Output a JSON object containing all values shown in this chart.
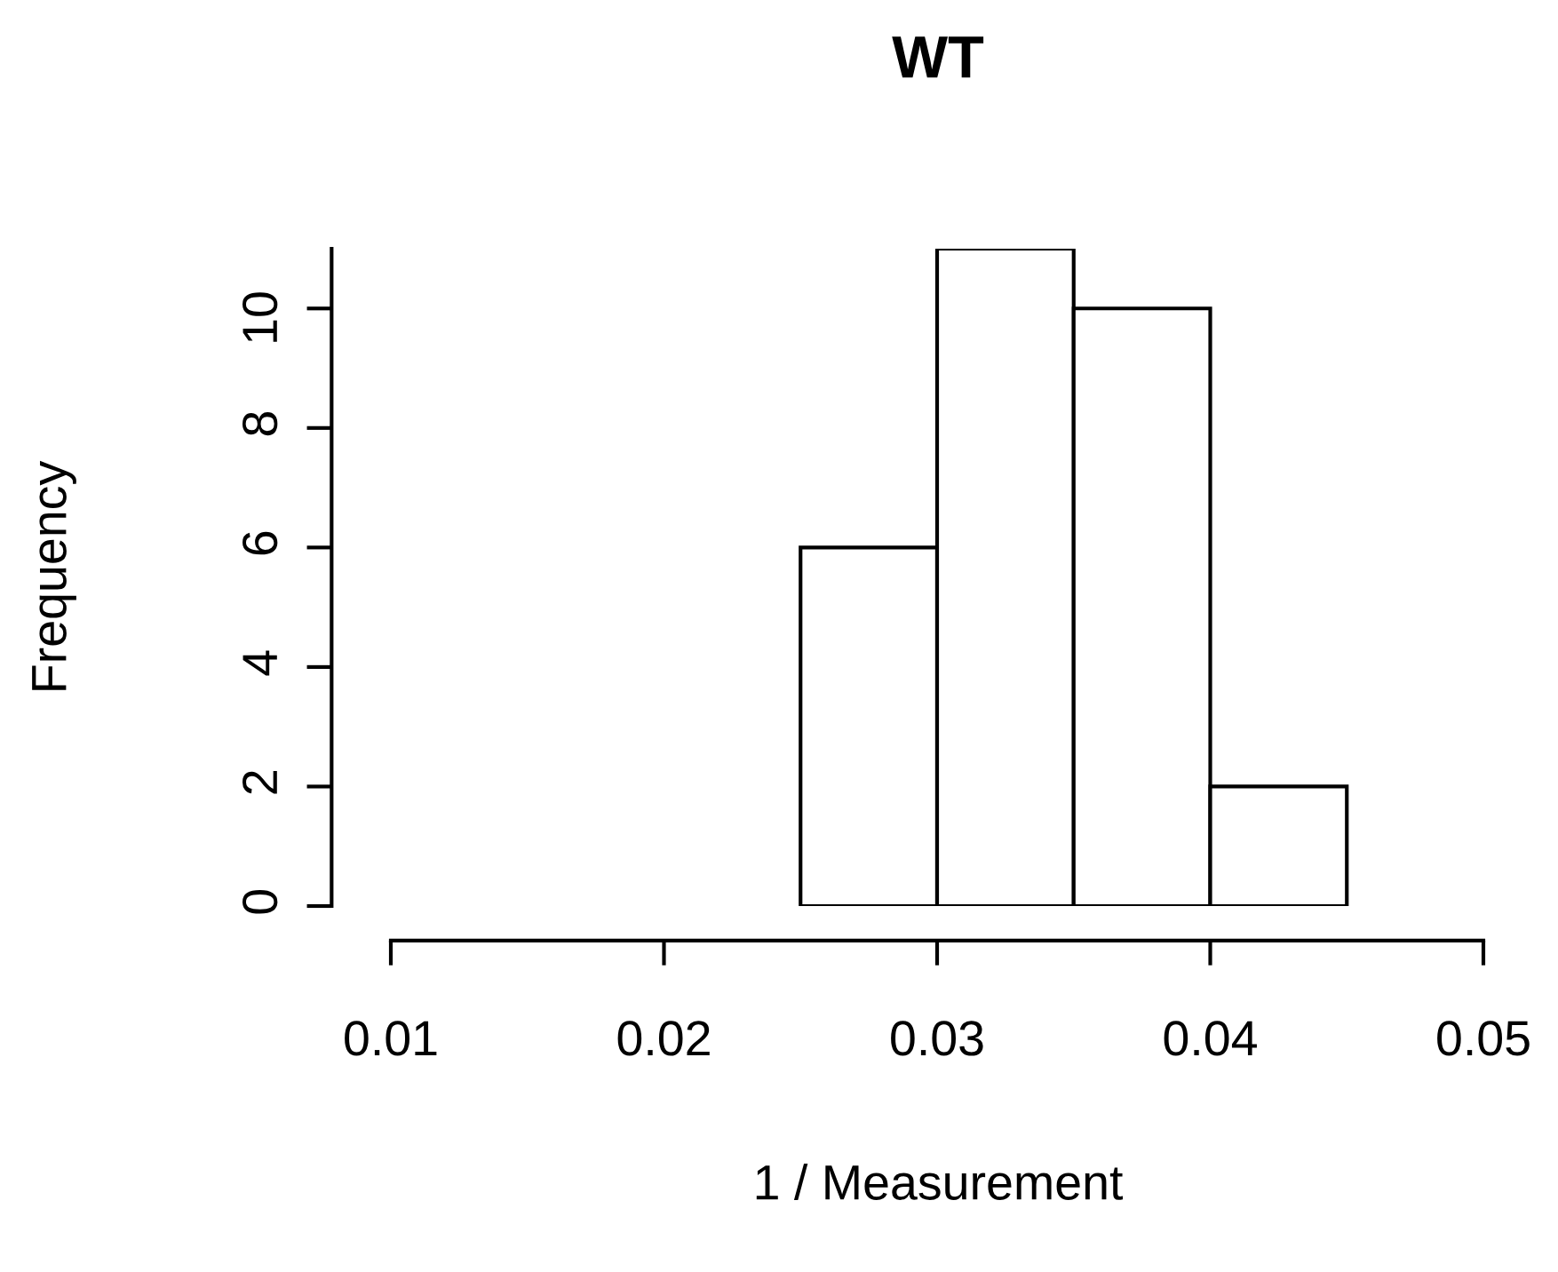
{
  "chart_data": {
    "type": "histogram",
    "title": "WT",
    "xlabel": "1 / Measurement",
    "ylabel": "Frequency",
    "bins": [
      0.025,
      0.03,
      0.035,
      0.04,
      0.045
    ],
    "values": [
      6,
      11,
      10,
      2
    ],
    "color": "#ffffff",
    "xlim": [
      0.01,
      0.05
    ],
    "xticks": [
      0.01,
      0.02,
      0.03,
      0.04,
      0.05
    ],
    "ylim": [
      0,
      11
    ],
    "yticks": [
      0,
      2,
      4,
      6,
      8,
      10
    ],
    "grid": false,
    "legend": false
  }
}
